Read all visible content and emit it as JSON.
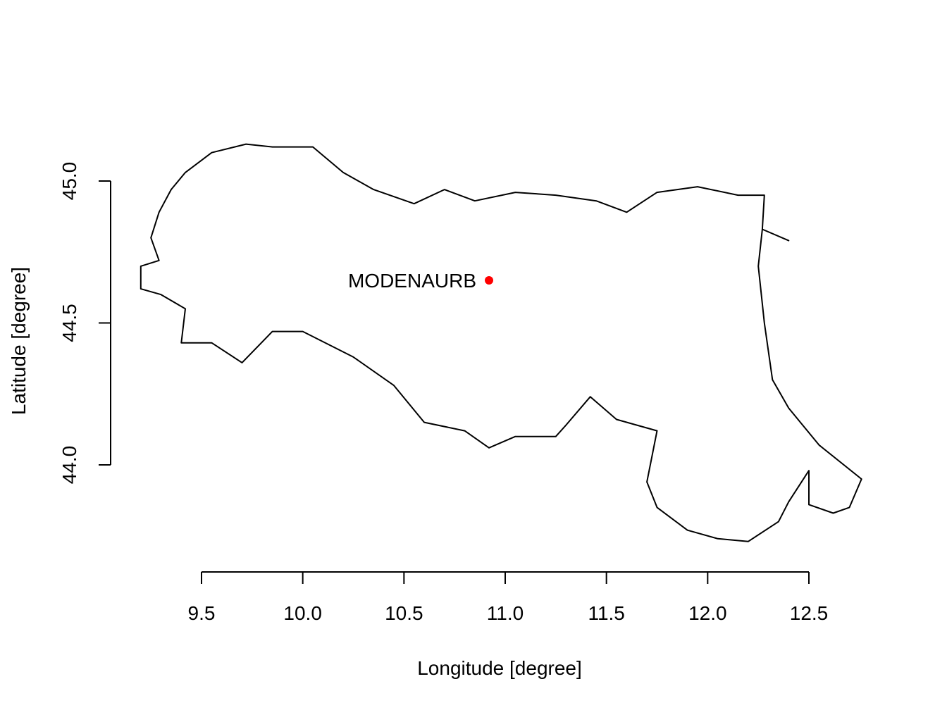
{
  "chart_data": {
    "type": "scatter",
    "xlabel": "Longitude [degree]",
    "ylabel": "Latitude [degree]",
    "xlim": [
      9.5,
      12.5
    ],
    "ylim": [
      44.0,
      45.0
    ],
    "x_ticks": [
      "9.5",
      "10.0",
      "10.5",
      "11.0",
      "11.5",
      "12.0",
      "12.5"
    ],
    "y_ticks": [
      "44.0",
      "44.5",
      "45.0"
    ],
    "points": [
      {
        "label": "MODENAURB",
        "lon": 10.92,
        "lat": 44.65,
        "color": "#ff0000"
      }
    ],
    "boundary": {
      "stroke": "#000000",
      "polygon": [
        [
          9.29,
          44.89
        ],
        [
          9.35,
          44.97
        ],
        [
          9.42,
          45.03
        ],
        [
          9.55,
          45.1
        ],
        [
          9.72,
          45.13
        ],
        [
          9.85,
          45.12
        ],
        [
          10.05,
          45.12
        ],
        [
          10.2,
          45.03
        ],
        [
          10.35,
          44.97
        ],
        [
          10.55,
          44.92
        ],
        [
          10.7,
          44.97
        ],
        [
          10.85,
          44.93
        ],
        [
          11.05,
          44.96
        ],
        [
          11.25,
          44.95
        ],
        [
          11.45,
          44.93
        ],
        [
          11.6,
          44.89
        ],
        [
          11.75,
          44.96
        ],
        [
          11.95,
          44.98
        ],
        [
          12.15,
          44.95
        ],
        [
          12.28,
          44.95
        ],
        [
          12.27,
          44.83
        ],
        [
          12.4,
          44.79
        ],
        [
          12.27,
          44.83
        ],
        [
          12.25,
          44.7
        ],
        [
          12.28,
          44.5
        ],
        [
          12.32,
          44.3
        ],
        [
          12.4,
          44.2
        ],
        [
          12.55,
          44.07
        ],
        [
          12.76,
          43.95
        ],
        [
          12.7,
          43.85
        ],
        [
          12.62,
          43.83
        ],
        [
          12.5,
          43.86
        ],
        [
          12.5,
          43.98
        ],
        [
          12.4,
          43.87
        ],
        [
          12.35,
          43.8
        ],
        [
          12.2,
          43.73
        ],
        [
          12.05,
          43.74
        ],
        [
          11.9,
          43.77
        ],
        [
          11.75,
          43.85
        ],
        [
          11.7,
          43.94
        ],
        [
          11.75,
          44.12
        ],
        [
          11.55,
          44.16
        ],
        [
          11.42,
          44.24
        ],
        [
          11.3,
          44.14
        ],
        [
          11.25,
          44.1
        ],
        [
          11.05,
          44.1
        ],
        [
          10.92,
          44.06
        ],
        [
          10.8,
          44.12
        ],
        [
          10.6,
          44.15
        ],
        [
          10.45,
          44.28
        ],
        [
          10.25,
          44.38
        ],
        [
          10.0,
          44.47
        ],
        [
          9.85,
          44.47
        ],
        [
          9.7,
          44.36
        ],
        [
          9.55,
          44.43
        ],
        [
          9.4,
          44.43
        ],
        [
          9.42,
          44.55
        ],
        [
          9.3,
          44.6
        ],
        [
          9.2,
          44.62
        ],
        [
          9.2,
          44.7
        ],
        [
          9.29,
          44.72
        ],
        [
          9.25,
          44.8
        ]
      ]
    }
  }
}
